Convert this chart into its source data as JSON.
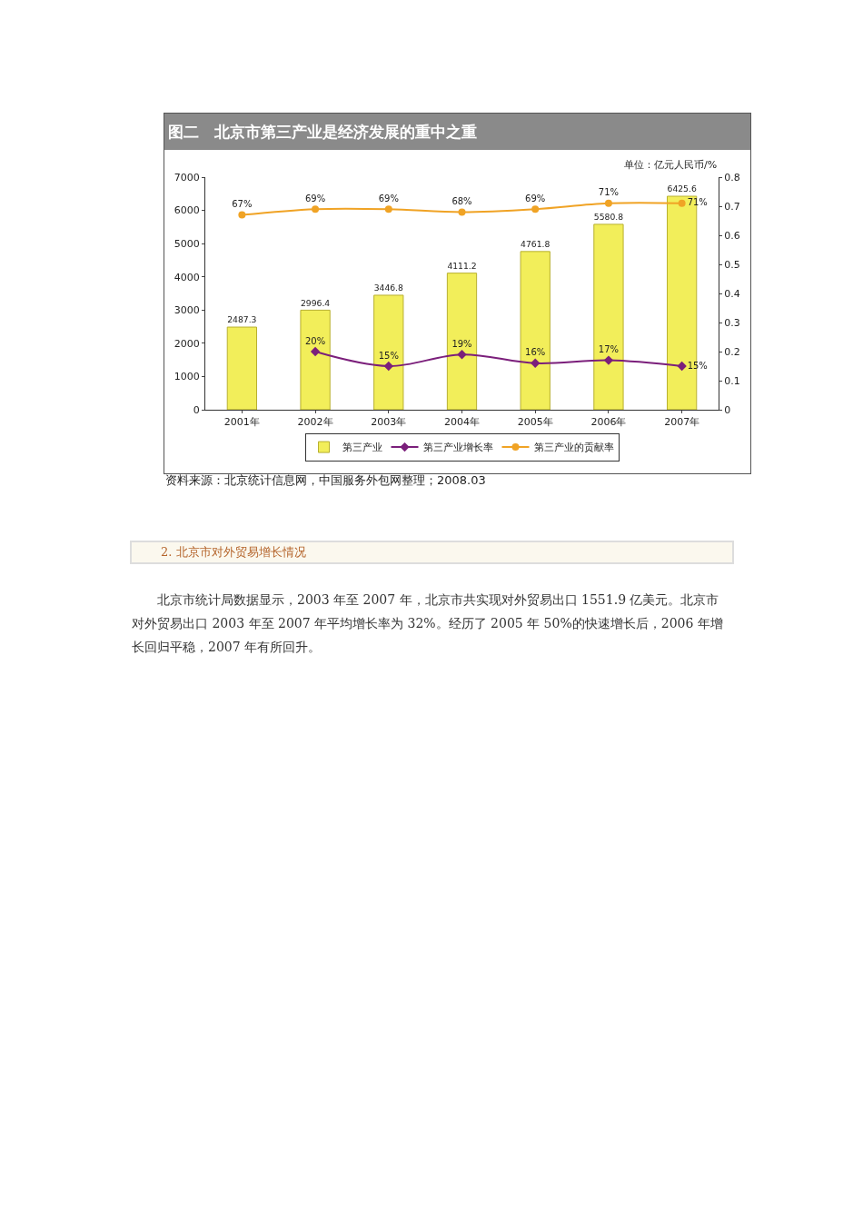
{
  "chart_data": {
    "type": "bar",
    "title": "图二　北京市第三产业是经济发展的重中之重",
    "categories": [
      "2001年",
      "2002年",
      "2003年",
      "2004年",
      "2005年",
      "2006年",
      "2007年"
    ],
    "series": [
      {
        "name": "第三产业",
        "color": "#f2ee5a",
        "values": [
          2487.3,
          2996.4,
          3446.8,
          4111.2,
          4761.8,
          5580.8,
          6425.6
        ],
        "value_labels": [
          "2487.3",
          "2996.4",
          "3446.8",
          "4111.2",
          "4761.8",
          "5580.8",
          "6425.6"
        ]
      },
      {
        "name": "第三产业增长率",
        "type": "line",
        "axis": "y2",
        "marker": "diamond",
        "color": "#7b1f7b",
        "values": [
          null,
          0.2,
          0.15,
          0.19,
          0.16,
          0.17,
          0.15
        ],
        "value_labels": [
          null,
          "20%",
          "15%",
          "19%",
          "16%",
          "17%",
          "15%"
        ]
      },
      {
        "name": "第三产业的贡献率",
        "type": "line",
        "axis": "y2",
        "marker": "circle",
        "color": "#f0a325",
        "values": [
          0.67,
          0.69,
          0.69,
          0.68,
          0.69,
          0.71,
          0.71
        ],
        "value_labels": [
          "67%",
          "69%",
          "69%",
          "68%",
          "69%",
          "71%",
          "71%"
        ]
      }
    ],
    "ylim": [
      0,
      7000
    ],
    "yticks": [
      0,
      1000,
      2000,
      3000,
      4000,
      5000,
      6000,
      7000
    ],
    "y2lim": [
      0,
      0.8
    ],
    "y2ticks": [
      0,
      0.1,
      0.2,
      0.3,
      0.4,
      0.5,
      0.6,
      0.7,
      0.8
    ],
    "grid": false,
    "legend": "bottom",
    "annotations": [
      "单位：亿元人民币/%",
      "资料来源：北京统计信息网，中国服务外包网整理；2008.03",
      "2. 北京市对外贸易增长情况",
      "北京市统计局数据显示，2003 年至 2007 年，北京市共实现对外贸易出口 1551.9 亿美元。北京市对外贸易出口 2003 年至 2007 年平均增长率为 32%。经历了 2005 年 50%的快速增长后，2006 年增长回归平稳，2007 年有所回升。"
    ]
  }
}
